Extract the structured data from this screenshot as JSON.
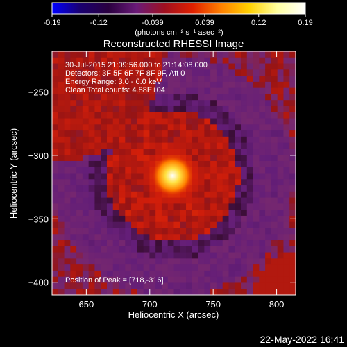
{
  "colorbar": {
    "ticks": [
      "-0.19",
      "-0.12",
      "-0.039",
      "0.039",
      "0.12",
      "0.19"
    ],
    "tick_values": [
      -0.19,
      -0.12,
      -0.039,
      0.039,
      0.12,
      0.19
    ],
    "range": [
      -0.19,
      0.19
    ],
    "units_label": "(photons cm⁻² s⁻¹ asec⁻²)",
    "gradient_colors": [
      "#0000ff",
      "#1a0070",
      "#2a0040",
      "#6a1a78",
      "#a01020",
      "#e02000",
      "#ff8000",
      "#ffd000",
      "#ffffa0",
      "#ffffff"
    ]
  },
  "chart_data": {
    "type": "heatmap",
    "title": "Reconstructed RHESSI Image",
    "xlabel": "Heliocentric X (arcsec)",
    "ylabel": "Heliocentric Y (arcsec)",
    "xlim": [
      623,
      815
    ],
    "ylim": [
      -410,
      -218
    ],
    "xticks": [
      650,
      700,
      750,
      800
    ],
    "yticks": [
      -250,
      -300,
      -350,
      -400
    ],
    "xtick_labels": [
      "650",
      "700",
      "750",
      "800"
    ],
    "ytick_labels": [
      "−250",
      "−300",
      "−350",
      "−400"
    ],
    "peak": [
      718,
      -316
    ],
    "annotations": [
      "30-Jul-2015 21:09:56.000 to 21:14:08.000",
      "Detectors: 3F 5F 6F 7F 8F 9F, Att 0",
      "Energy Range: 3.0 - 6.0 keV",
      "Clean     Total counts: 4.88E+04"
    ],
    "peak_label": "Position of Peak = [718,-316]"
  },
  "timestamp": "22-May-2022 16:41"
}
